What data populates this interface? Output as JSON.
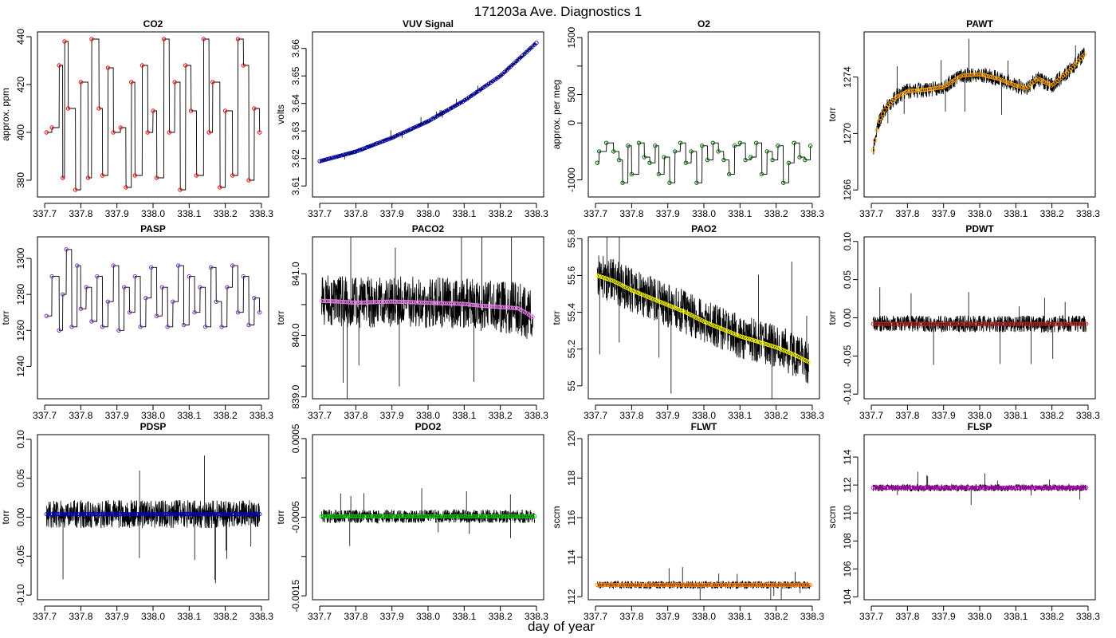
{
  "title": "171203a   Ave. Diagnostics 1",
  "xlabel": "day of year",
  "chart_data": [
    {
      "type": "line",
      "title": "CO2",
      "ylabel": "approx. ppm",
      "xlim": [
        337.68,
        338.32
      ],
      "ylim": [
        373,
        442
      ],
      "xticks": [
        "337.7",
        "337.8",
        "337.9",
        "338.0",
        "338.1",
        "338.2",
        "338.3"
      ],
      "yticks": [
        380,
        400,
        420,
        440
      ],
      "marker_color": "#ff0000",
      "noise": 0,
      "series": [
        {
          "x": [
            337.705,
            337.72,
            337.74,
            337.75,
            337.755,
            337.765,
            337.785,
            337.8,
            337.82,
            337.83,
            337.85,
            337.86,
            337.875,
            337.89,
            337.91,
            337.925,
            337.94,
            337.95,
            337.97,
            337.985,
            338.0,
            338.01,
            338.03,
            338.045,
            338.06,
            338.075,
            338.09,
            338.105,
            338.12,
            338.14,
            338.155,
            338.165,
            338.185,
            338.2,
            338.22,
            338.235,
            338.25,
            338.265,
            338.28,
            338.295
          ],
          "values": [
            400,
            402,
            428,
            381,
            438,
            410,
            376,
            421,
            381,
            439,
            410,
            382,
            427,
            400,
            402,
            377,
            421,
            382,
            428,
            400,
            409,
            381,
            439,
            400,
            421,
            376,
            428,
            409,
            382,
            439,
            400,
            421,
            377,
            409,
            382,
            439,
            428,
            380,
            410,
            400
          ]
        }
      ]
    },
    {
      "type": "line",
      "title": "VUV Signal",
      "ylabel": "volts",
      "xlim": [
        337.68,
        338.32
      ],
      "ylim": [
        3.606,
        3.666
      ],
      "xticks": [
        "337.7",
        "337.8",
        "337.9",
        "338.0",
        "338.1",
        "338.2",
        "338.3"
      ],
      "yticks": [
        3.61,
        3.62,
        3.63,
        3.64,
        3.65,
        3.66
      ],
      "marker_color": "#0000b0",
      "noise": 0.0006,
      "series": [
        {
          "x": [
            337.7,
            337.8,
            337.9,
            338.0,
            338.1,
            338.2,
            338.3
          ],
          "values": [
            3.619,
            3.6225,
            3.6275,
            3.6335,
            3.641,
            3.65,
            3.662
          ]
        }
      ]
    },
    {
      "type": "line",
      "title": "O2",
      "ylabel": "approx. per meg",
      "xlim": [
        337.68,
        338.32
      ],
      "ylim": [
        -1300,
        1600
      ],
      "xticks": [
        "337.7",
        "337.8",
        "337.9",
        "338.0",
        "338.1",
        "338.2",
        "338.3"
      ],
      "yticks": [
        -1000,
        0,
        500,
        1000,
        1500
      ],
      "ytick_labels": [
        "-1000",
        "0",
        "500",
        "",
        "1500"
      ],
      "marker_color": "#006400",
      "noise": 0,
      "series": [
        {
          "x": [
            337.705,
            337.71,
            337.73,
            337.75,
            337.765,
            337.775,
            337.79,
            337.8,
            337.82,
            337.835,
            337.85,
            337.865,
            337.875,
            337.89,
            337.905,
            337.92,
            337.935,
            337.95,
            337.965,
            337.98,
            337.995,
            338.01,
            338.025,
            338.04,
            338.055,
            338.07,
            338.085,
            338.1,
            338.115,
            338.13,
            338.145,
            338.16,
            338.175,
            338.19,
            338.205,
            338.22,
            338.235,
            338.25,
            338.265,
            338.28,
            338.295
          ],
          "values": [
            -700,
            -500,
            -350,
            -500,
            -650,
            -1050,
            -400,
            -900,
            -350,
            -600,
            -700,
            -400,
            -900,
            -600,
            -1050,
            -500,
            -350,
            -700,
            -500,
            -1050,
            -400,
            -650,
            -350,
            -500,
            -650,
            -900,
            -400,
            -350,
            -650,
            -600,
            -350,
            -900,
            -500,
            -650,
            -400,
            -1050,
            -700,
            -350,
            -600,
            -650,
            -400
          ]
        }
      ]
    },
    {
      "type": "line",
      "title": "PAWT",
      "ylabel": "torr",
      "xlim": [
        337.68,
        338.32
      ],
      "ylim": [
        1265.5,
        1277.2
      ],
      "xticks": [
        "337.7",
        "337.8",
        "337.9",
        "338.0",
        "338.1",
        "338.2",
        "338.3"
      ],
      "yticks": [
        1266,
        1270,
        1274
      ],
      "marker_color": "#ffa500",
      "noise": 0.55,
      "series": [
        {
          "x": [
            337.705,
            337.72,
            337.74,
            337.77,
            337.8,
            337.85,
            337.9,
            337.95,
            338.0,
            338.05,
            338.1,
            338.13,
            338.16,
            338.2,
            338.25,
            338.29
          ],
          "values": [
            1268.8,
            1270.8,
            1271.8,
            1272.6,
            1273.0,
            1273.1,
            1273.3,
            1274.1,
            1274.2,
            1273.9,
            1273.4,
            1273.2,
            1273.9,
            1273.4,
            1274.5,
            1275.6
          ]
        }
      ]
    },
    {
      "type": "line",
      "title": "PASP",
      "ylabel": "torr",
      "xlim": [
        337.68,
        338.32
      ],
      "ylim": [
        1222,
        1312
      ],
      "xticks": [
        "337.7",
        "337.8",
        "337.9",
        "338.0",
        "338.1",
        "338.2",
        "338.3"
      ],
      "yticks": [
        1240,
        1260,
        1280,
        1300
      ],
      "marker_color": "#7b2fbf",
      "noise": 0,
      "series": [
        {
          "x": [
            337.705,
            337.72,
            337.74,
            337.75,
            337.76,
            337.775,
            337.79,
            337.8,
            337.815,
            337.83,
            337.845,
            337.86,
            337.875,
            337.89,
            337.905,
            337.92,
            337.935,
            337.95,
            337.965,
            337.98,
            337.995,
            338.01,
            338.025,
            338.04,
            338.055,
            338.07,
            338.085,
            338.1,
            338.115,
            338.13,
            338.145,
            338.16,
            338.175,
            338.19,
            338.205,
            338.22,
            338.235,
            338.25,
            338.265,
            338.28,
            338.295
          ],
          "values": [
            1268,
            1290,
            1260,
            1280,
            1305,
            1262,
            1296,
            1272,
            1284,
            1265,
            1290,
            1262,
            1276,
            1296,
            1260,
            1284,
            1270,
            1290,
            1262,
            1278,
            1295,
            1268,
            1284,
            1262,
            1276,
            1296,
            1263,
            1290,
            1270,
            1284,
            1262,
            1295,
            1276,
            1262,
            1284,
            1296,
            1270,
            1290,
            1263,
            1278,
            1270
          ]
        }
      ]
    },
    {
      "type": "line",
      "title": "PACO2",
      "ylabel": "torr",
      "xlim": [
        337.68,
        338.32
      ],
      "ylim": [
        838.97,
        841.6
      ],
      "xticks": [
        "337.7",
        "337.8",
        "337.9",
        "338.0",
        "338.1",
        "338.2",
        "338.3"
      ],
      "yticks": [
        839.0,
        839.5,
        840.0,
        840.5,
        841.0
      ],
      "ytick_labels": [
        "839.0",
        "",
        "840.0",
        "",
        "841.0"
      ],
      "marker_color": "#ee82ee",
      "noise": 0.42,
      "series": [
        {
          "x": [
            337.705,
            337.75,
            337.8,
            337.85,
            337.9,
            337.95,
            338.0,
            338.05,
            338.1,
            338.15,
            338.2,
            338.25,
            338.29
          ],
          "values": [
            840.56,
            840.55,
            840.53,
            840.54,
            840.55,
            840.54,
            840.53,
            840.52,
            840.51,
            840.48,
            840.46,
            840.44,
            840.3
          ]
        }
      ]
    },
    {
      "type": "line",
      "title": "PAO2",
      "ylabel": "torr",
      "xlim": [
        337.68,
        338.32
      ],
      "ylim": [
        54.93,
        55.81
      ],
      "xticks": [
        "337.7",
        "337.8",
        "337.9",
        "338.0",
        "338.1",
        "338.2",
        "338.3"
      ],
      "yticks": [
        55.0,
        55.2,
        55.4,
        55.6,
        55.8
      ],
      "marker_color": "#ffff00",
      "noise": 0.12,
      "series": [
        {
          "x": [
            337.705,
            337.75,
            337.8,
            337.85,
            337.9,
            337.95,
            338.0,
            338.05,
            338.1,
            338.15,
            338.2,
            338.25,
            338.29
          ],
          "values": [
            55.6,
            55.57,
            55.52,
            55.48,
            55.44,
            55.4,
            55.35,
            55.31,
            55.27,
            55.24,
            55.21,
            55.17,
            55.13
          ]
        }
      ]
    },
    {
      "type": "line",
      "title": "PDWT",
      "ylabel": "torr",
      "xlim": [
        337.68,
        338.32
      ],
      "ylim": [
        -0.106,
        0.106
      ],
      "xticks": [
        "337.7",
        "337.8",
        "337.9",
        "338.0",
        "338.1",
        "338.2",
        "338.3"
      ],
      "yticks": [
        -0.1,
        -0.05,
        0.0,
        0.05,
        0.1
      ],
      "ytick_labels": [
        "-0.10",
        "-0.05",
        "0.00",
        "0.05",
        "0.10"
      ],
      "marker_color": "#b22222",
      "noise": 0.011,
      "series": [
        {
          "x": [
            337.705,
            338.295
          ],
          "values": [
            -0.008,
            -0.008
          ]
        }
      ]
    },
    {
      "type": "line",
      "title": "PDSP",
      "ylabel": "torr",
      "xlim": [
        337.68,
        338.32
      ],
      "ylim": [
        -0.106,
        0.106
      ],
      "xticks": [
        "337.7",
        "337.8",
        "337.9",
        "338.0",
        "338.1",
        "338.2",
        "338.3"
      ],
      "yticks": [
        -0.1,
        -0.05,
        0.0,
        0.05,
        0.1
      ],
      "ytick_labels": [
        "-0.10",
        "-0.05",
        "0.00",
        "0.05",
        "0.10"
      ],
      "marker_color": "#0000cd",
      "noise": 0.018,
      "series": [
        {
          "x": [
            337.705,
            338.295
          ],
          "values": [
            0.004,
            0.004
          ]
        }
      ]
    },
    {
      "type": "line",
      "title": "PDO2",
      "ylabel": "torr",
      "xlim": [
        337.68,
        338.32
      ],
      "ylim": [
        -0.00155,
        0.00055
      ],
      "xticks": [
        "337.7",
        "337.8",
        "337.9",
        "338.0",
        "338.1",
        "338.2",
        "338.3"
      ],
      "yticks": [
        -0.0015,
        -0.001,
        -0.0005,
        0.0,
        0.0005
      ],
      "ytick_labels": [
        "-0.0015",
        "",
        "-0.0005",
        "",
        "0.0005"
      ],
      "marker_color": "#00cc00",
      "noise": 8.5e-05,
      "series": [
        {
          "x": [
            337.705,
            338.295
          ],
          "values": [
            -0.00049,
            -0.00049
          ]
        }
      ]
    },
    {
      "type": "line",
      "title": "FLWT",
      "ylabel": "sccm",
      "xlim": [
        337.68,
        338.32
      ],
      "ylim": [
        111.85,
        120.2
      ],
      "xticks": [
        "337.7",
        "337.8",
        "337.9",
        "338.0",
        "338.1",
        "338.2",
        "338.3"
      ],
      "yticks": [
        112,
        114,
        116,
        118,
        120
      ],
      "ytick_labels": [
        "112",
        "114",
        "116",
        "118",
        "120"
      ],
      "marker_color": "#ff7f00",
      "noise": 0.2,
      "series": [
        {
          "x": [
            337.705,
            338.295
          ],
          "values": [
            112.6,
            112.6
          ]
        }
      ]
    },
    {
      "type": "line",
      "title": "FLSP",
      "ylabel": "sccm",
      "xlim": [
        337.68,
        338.32
      ],
      "ylim": [
        103.8,
        115.6
      ],
      "xticks": [
        "337.7",
        "337.8",
        "337.9",
        "338.0",
        "338.1",
        "338.2",
        "338.3"
      ],
      "yticks": [
        104,
        106,
        108,
        110,
        112,
        114
      ],
      "marker_color": "#c000c0",
      "noise": 0.25,
      "series": [
        {
          "x": [
            337.705,
            338.295
          ],
          "values": [
            111.8,
            111.8
          ]
        }
      ]
    }
  ]
}
